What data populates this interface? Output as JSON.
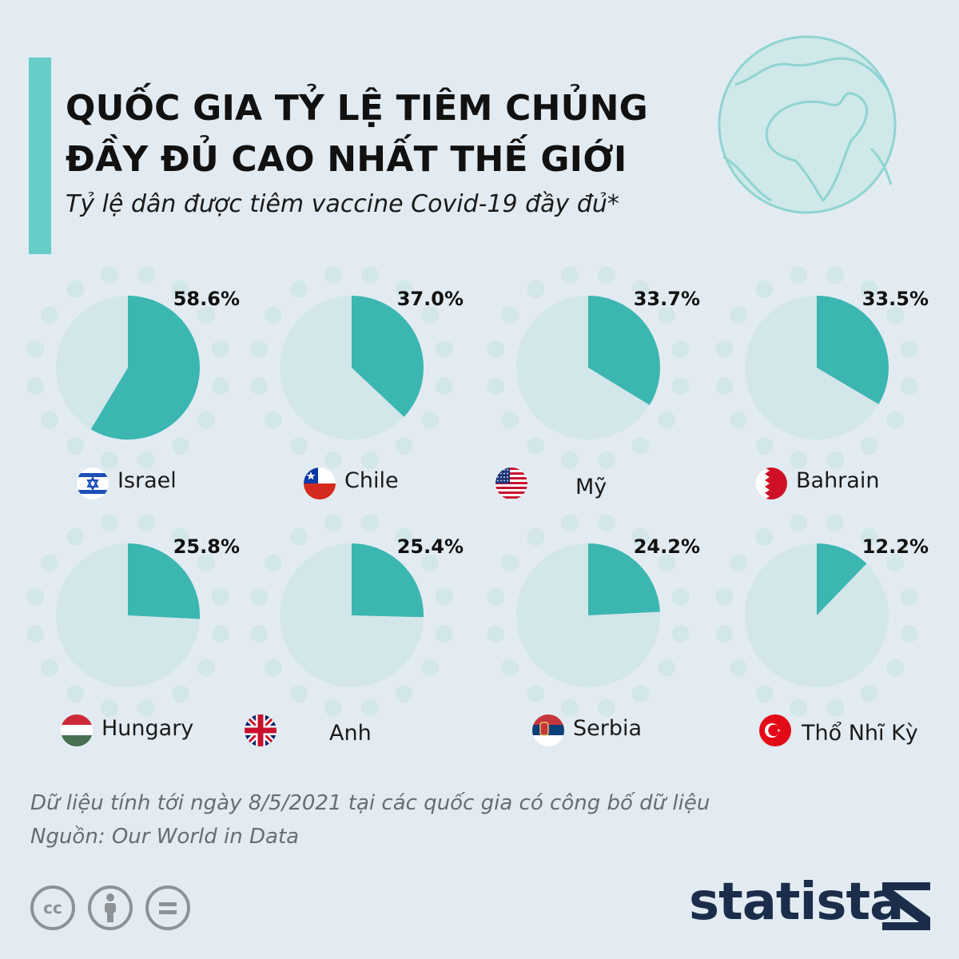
{
  "header": {
    "title_line1": "QUỐC GIA TỶ LỆ TIÊM CHỦNG",
    "title_line2": "ĐẦY ĐỦ CAO NHẤT THẾ GIỚI",
    "subtitle": "Tỷ lệ dân được tiêm vaccine Covid-19 đầy đủ*"
  },
  "colors": {
    "fill": "#3cb6b1",
    "empty": "#d3e6ea",
    "dot": "#d3e6ea",
    "accent": "#66cdc7",
    "background": "#e2ebf1"
  },
  "chart_data": {
    "type": "pie",
    "unit": "%",
    "categories": [
      "Israel",
      "Chile",
      "Mỹ",
      "Bahrain",
      "Hungary",
      "Anh",
      "Serbia",
      "Thổ Nhĩ Kỳ"
    ],
    "values": [
      58.6,
      37.0,
      33.7,
      33.5,
      25.8,
      25.4,
      24.2,
      12.2
    ],
    "value_labels": [
      "58.6%",
      "37.0%",
      "33.7%",
      "33.5%",
      "25.8%",
      "25.4%",
      "24.2%",
      "12.2%"
    ],
    "flag_icons": [
      "israel-flag-icon",
      "chile-flag-icon",
      "usa-flag-icon",
      "bahrain-flag-icon",
      "hungary-flag-icon",
      "uk-flag-icon",
      "serbia-flag-icon",
      "turkey-flag-icon"
    ]
  },
  "footer": {
    "note": "Dữ liệu tính tới ngày 8/5/2021 tại các quốc gia có công bố dữ liệu",
    "source": "Nguồn: Our World in Data",
    "cc_icons": [
      "creative-commons-icon",
      "attribution-icon",
      "no-derivatives-icon"
    ],
    "cc_glyphs": [
      "cc",
      "",
      "="
    ],
    "brand": "statista"
  }
}
